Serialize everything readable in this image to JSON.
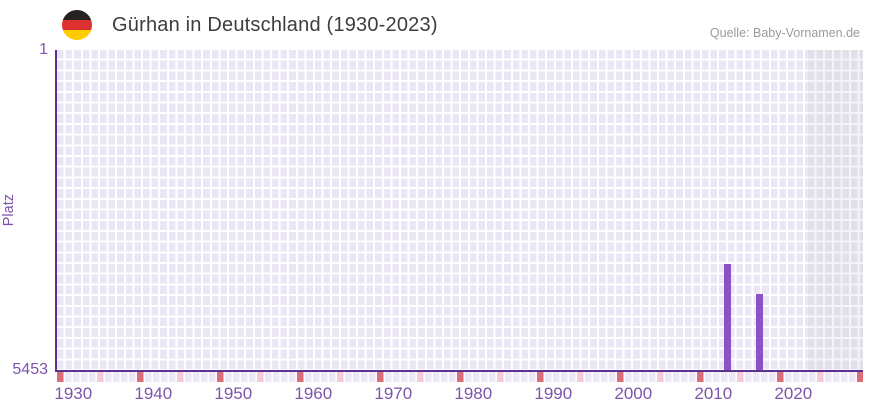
{
  "header": {
    "title": "Gürhan in Deutschland (1930-2023)",
    "source": "Quelle: Baby-Vornamen.de",
    "flag_icon": "german-flag-circle"
  },
  "chart_data": {
    "type": "bar",
    "title": "Gürhan in Deutschland (1930-2023)",
    "xlabel": "",
    "ylabel": "Platz",
    "y_axis": {
      "top_tick": "1",
      "bottom_tick": "5453",
      "min": 1,
      "max": 5453,
      "inverted": true,
      "meaning": "rank (Platz), 1 = best"
    },
    "x_axis": {
      "range_start": 1930,
      "range_end": 2023,
      "ticks": [
        "1930",
        "1940",
        "1950",
        "1960",
        "1970",
        "1980",
        "1990",
        "2000",
        "2010",
        "2020"
      ]
    },
    "bars": [
      {
        "year": 2012,
        "rank": 3640
      },
      {
        "year": 2016,
        "rank": 4160
      }
    ],
    "legend": "none",
    "grid": "decorative-checkered-lavender",
    "gray_region_years": [
      2022,
      2023
    ]
  },
  "colors": {
    "bar": "#8d53c6",
    "axis_line": "#5b3091",
    "tick_label": "#7d55ab",
    "grid_cell": "#ebe6f4",
    "grid_cell_gray": "#e2dfe9",
    "marker_red": "#dd6b78",
    "marker_pink": "#f2cbd8",
    "title_text": "#3d3d3d",
    "source_text": "#9b9b9b",
    "flag_black": "#262220",
    "flag_red": "#dd3131",
    "flag_gold": "#ffcc00"
  }
}
